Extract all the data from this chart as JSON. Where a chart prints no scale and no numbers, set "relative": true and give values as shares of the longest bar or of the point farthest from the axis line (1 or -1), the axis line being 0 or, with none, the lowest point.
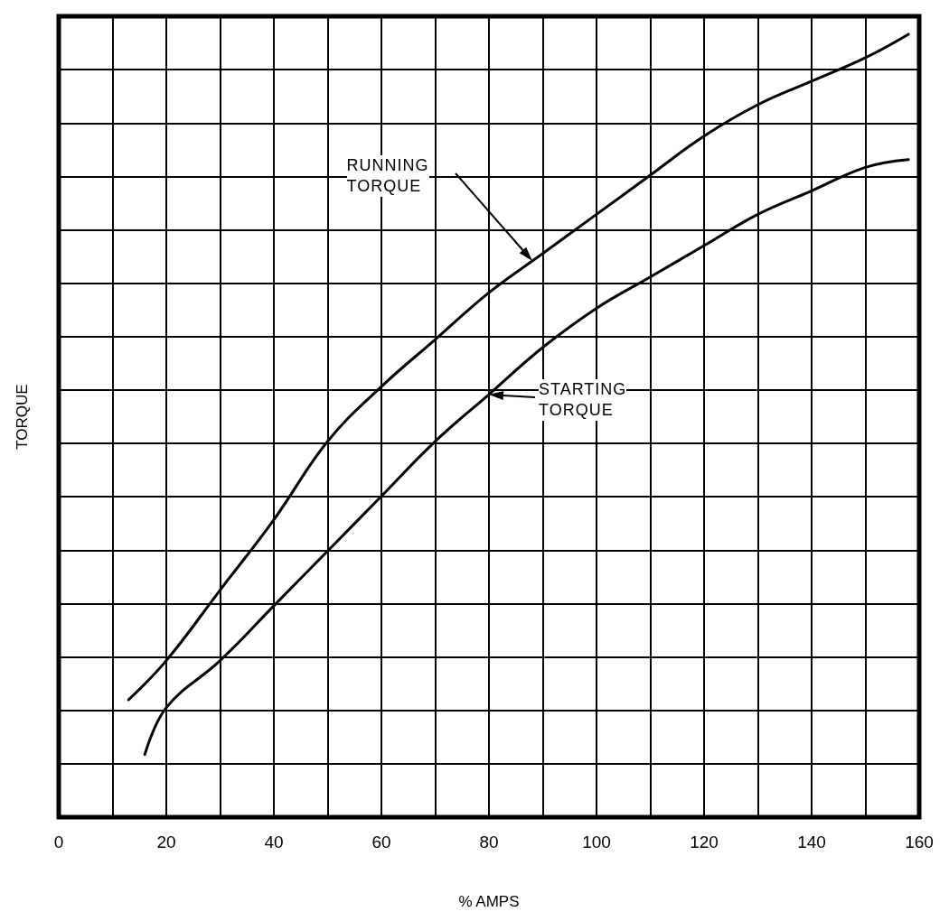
{
  "chart_data": {
    "type": "line",
    "relative": true,
    "xlabel": "% AMPS",
    "ylabel": "TORQUE",
    "xlim": [
      0,
      160
    ],
    "xticks": [
      0,
      {
        "value": 10,
        "label": null
      },
      20,
      {
        "value": 30,
        "label": null
      },
      40,
      {
        "value": 50,
        "label": null
      },
      60,
      {
        "value": 70,
        "label": null
      },
      80,
      {
        "value": 90,
        "label": null
      },
      100,
      {
        "value": 110,
        "label": null
      },
      120,
      {
        "value": 130,
        "label": null
      },
      140,
      {
        "value": 150,
        "label": null
      },
      160
    ],
    "grid": true,
    "marker": "none",
    "line_style": "solid",
    "series": [
      {
        "color": "#000000",
        "x": [
          13,
          20,
          30,
          40,
          50,
          60,
          70,
          80,
          90,
          100,
          110,
          120,
          130,
          140,
          150,
          158
        ],
        "values": [
          0.15,
          0.2,
          0.29,
          0.38,
          0.48,
          0.55,
          0.61,
          0.67,
          0.72,
          0.77,
          0.82,
          0.87,
          0.91,
          0.94,
          0.97,
          1
        ]
      },
      {
        "color": "#000000",
        "x": [
          16,
          20,
          30,
          40,
          50,
          60,
          70,
          80,
          90,
          100,
          110,
          120,
          130,
          140,
          150,
          158
        ],
        "values": [
          0.08,
          0.14,
          0.2,
          0.27,
          0.34,
          0.41,
          0.48,
          0.54,
          0.6,
          0.65,
          0.69,
          0.73,
          0.77,
          0.8,
          0.83,
          0.84
        ]
      }
    ],
    "annotations": [
      "RUNNING\nTORQUE",
      "STARTING\nTORQUE"
    ]
  }
}
